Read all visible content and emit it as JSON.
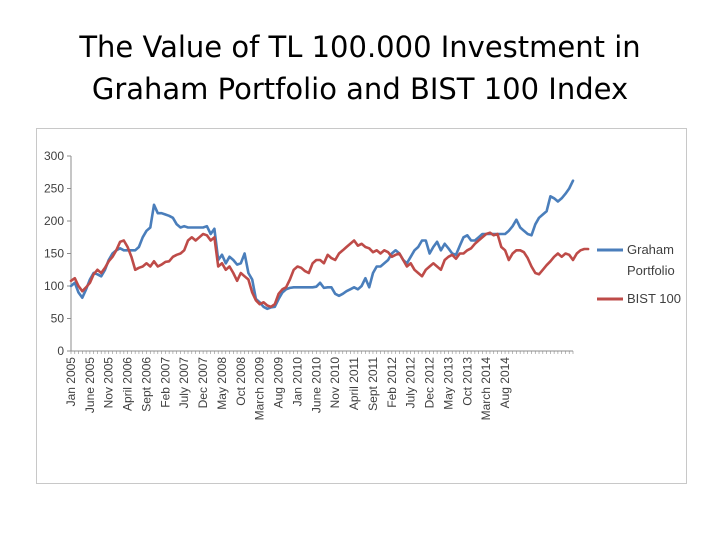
{
  "slide": {
    "title_line1": "The Value of TL 100.000 Investment in",
    "title_line2": "Graham Portfolio and BIST 100 Index"
  },
  "chart_data": {
    "type": "line",
    "title": "The Value of TL 100.000 Investment in Graham Portfolio and BIST 100 Index",
    "xlabel": "",
    "ylabel": "",
    "ylim": [
      0,
      300
    ],
    "yticks": [
      0,
      50,
      100,
      150,
      200,
      250,
      300
    ],
    "grid": false,
    "legend": "right",
    "x_tick_labels": [
      "Jan 2005",
      "June 2005",
      "Nov 2005",
      "April 2006",
      "Sept 2006",
      "Feb 2007",
      "July 2007",
      "Dec 2007",
      "May 2008",
      "Oct 2008",
      "March 2009",
      "Aug 2009",
      "Jan 2010",
      "June 2010",
      "Nov 2010",
      "April 2011",
      "Sept 2011",
      "Feb 2012",
      "July 2012",
      "Dec 2012",
      "May 2013",
      "Oct 2013",
      "March 2014",
      "Aug 2014"
    ],
    "x_tick_every": 5,
    "series": [
      {
        "name": "Graham Portfolio",
        "color": "#4a7ebb",
        "values": [
          100,
          105,
          90,
          82,
          95,
          110,
          120,
          118,
          115,
          125,
          140,
          150,
          155,
          158,
          155,
          155,
          155,
          155,
          160,
          175,
          185,
          190,
          225,
          212,
          212,
          210,
          208,
          205,
          195,
          190,
          192,
          190,
          190,
          190,
          190,
          190,
          192,
          180,
          188,
          140,
          148,
          135,
          145,
          140,
          133,
          135,
          150,
          120,
          110,
          80,
          75,
          68,
          65,
          67,
          68,
          80,
          90,
          95,
          97,
          98,
          98,
          98,
          98,
          98,
          98,
          99,
          105,
          97,
          98,
          98,
          88,
          85,
          88,
          92,
          95,
          98,
          95,
          100,
          112,
          98,
          120,
          130,
          130,
          135,
          140,
          150,
          155,
          150,
          140,
          135,
          145,
          155,
          160,
          170,
          170,
          150,
          160,
          168,
          155,
          165,
          158,
          150,
          148,
          162,
          175,
          178,
          170,
          170,
          175,
          180,
          180,
          180,
          180,
          180,
          180,
          180,
          185,
          192,
          202,
          190,
          185,
          180,
          178,
          195,
          205,
          210,
          215,
          238,
          235,
          230,
          235,
          242,
          250,
          262
        ]
      },
      {
        "name": "BIST 100",
        "color": "#be4b48",
        "values": [
          108,
          112,
          100,
          92,
          98,
          105,
          118,
          125,
          120,
          128,
          138,
          145,
          155,
          168,
          170,
          160,
          145,
          125,
          128,
          130,
          135,
          130,
          138,
          130,
          133,
          137,
          138,
          145,
          148,
          150,
          155,
          170,
          175,
          170,
          175,
          180,
          178,
          170,
          175,
          130,
          135,
          125,
          130,
          120,
          108,
          120,
          115,
          110,
          90,
          78,
          72,
          75,
          70,
          68,
          72,
          88,
          95,
          98,
          110,
          125,
          130,
          128,
          123,
          120,
          135,
          140,
          140,
          135,
          148,
          143,
          140,
          150,
          155,
          160,
          165,
          170,
          162,
          165,
          160,
          158,
          152,
          155,
          150,
          155,
          152,
          145,
          148,
          150,
          140,
          130,
          135,
          125,
          120,
          115,
          125,
          130,
          135,
          130,
          125,
          140,
          145,
          148,
          142,
          150,
          150,
          155,
          158,
          165,
          170,
          175,
          180,
          182,
          178,
          180,
          160,
          155,
          140,
          150,
          155,
          155,
          152,
          143,
          130,
          120,
          118,
          125,
          132,
          138,
          145,
          150,
          145,
          150,
          148,
          140,
          150,
          155,
          157,
          157
        ]
      }
    ]
  }
}
